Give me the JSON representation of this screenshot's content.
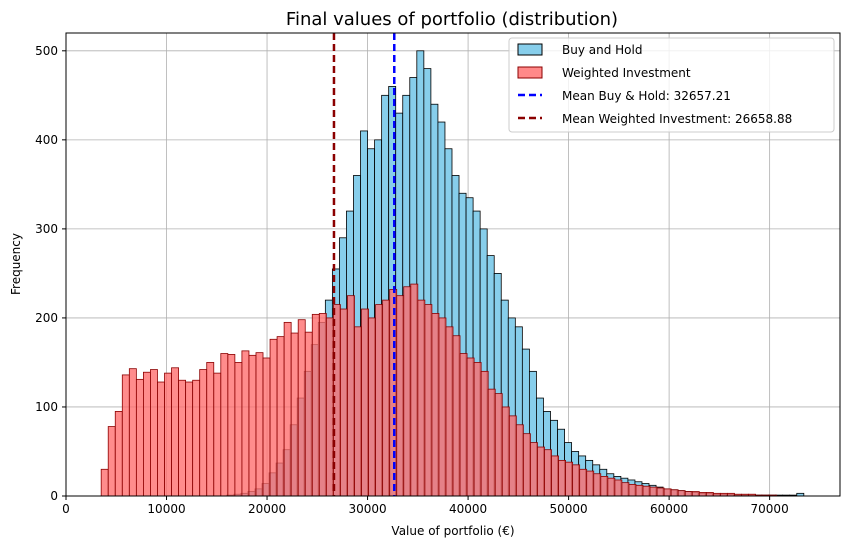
{
  "chart_data": {
    "type": "bar",
    "title": "Final values of portfolio (distribution)",
    "xlabel": "Value of portfolio (€)",
    "ylabel": "Frequency",
    "xlim": [
      0,
      77000
    ],
    "ylim": [
      0,
      520
    ],
    "xticks": [
      0,
      10000,
      20000,
      30000,
      40000,
      50000,
      60000,
      70000
    ],
    "yticks": [
      0,
      100,
      200,
      300,
      400,
      500
    ],
    "grid": true,
    "legend_position": "top-right",
    "series": [
      {
        "name": "Buy and Hold",
        "color": "#87ceeb",
        "edge": "#000000",
        "alpha": 1,
        "start": 16000,
        "bin_width": 700,
        "values": [
          1,
          2,
          3,
          5,
          8,
          14,
          26,
          37,
          52,
          80,
          110,
          140,
          170,
          195,
          220,
          255,
          290,
          320,
          360,
          410,
          390,
          400,
          450,
          460,
          430,
          450,
          470,
          500,
          480,
          440,
          420,
          390,
          360,
          340,
          335,
          320,
          300,
          270,
          250,
          220,
          200,
          190,
          165,
          140,
          110,
          95,
          85,
          75,
          60,
          50,
          45,
          40,
          35,
          30,
          25,
          22,
          20,
          18,
          16,
          14,
          12,
          10,
          8,
          7,
          6,
          5,
          4,
          3,
          3,
          2,
          2,
          2,
          1,
          1,
          1,
          1,
          1,
          1,
          1,
          1,
          1,
          3
        ],
        "__comment": "estimated histogram bin heights"
      },
      {
        "name": "Weighted Investment",
        "color": "#ff6b6b",
        "edge": "#8b0000",
        "alpha": 0.78,
        "start": 3500,
        "bin_width": 700,
        "values": [
          30,
          78,
          95,
          136,
          143,
          131,
          139,
          142,
          128,
          138,
          144,
          130,
          128,
          130,
          142,
          150,
          138,
          160,
          159,
          150,
          163,
          158,
          161,
          155,
          176,
          179,
          195,
          183,
          198,
          184,
          204,
          205,
          200,
          215,
          210,
          225,
          190,
          210,
          200,
          215,
          220,
          232,
          225,
          235,
          238,
          220,
          215,
          205,
          200,
          190,
          180,
          160,
          155,
          150,
          140,
          120,
          115,
          100,
          90,
          80,
          70,
          60,
          55,
          52,
          45,
          40,
          38,
          35,
          30,
          28,
          25,
          22,
          20,
          18,
          15,
          13,
          12,
          11,
          10,
          9,
          8,
          7,
          6,
          5,
          5,
          4,
          4,
          3,
          3,
          3,
          2,
          2,
          2,
          1,
          1,
          1
        ],
        "__comment": "estimated histogram bin heights"
      }
    ],
    "mean_lines": [
      {
        "label": "Mean Buy & Hold: 32657.21",
        "x": 32657.21,
        "color": "#0000ff"
      },
      {
        "label": "Mean Weighted Investment: 26658.88",
        "x": 26658.88,
        "color": "#8b0000"
      }
    ]
  }
}
